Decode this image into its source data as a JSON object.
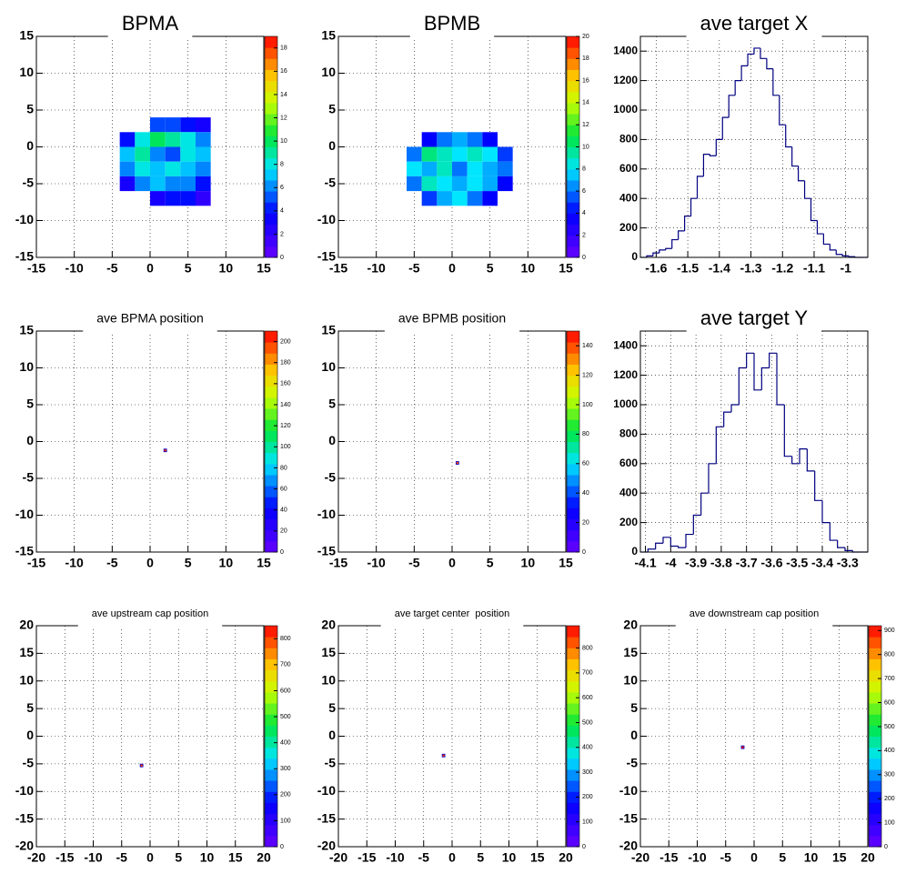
{
  "chart_data": [
    {
      "type": "heatmap",
      "title": "BPMA",
      "xlim": [
        -15,
        15
      ],
      "ylim": [
        -15,
        15
      ],
      "xticks": [
        -15,
        -10,
        -5,
        0,
        5,
        10,
        15
      ],
      "yticks": [
        -15,
        -10,
        -5,
        0,
        5,
        10,
        15
      ],
      "zlim": [
        0,
        19
      ],
      "zticks": [
        0,
        2,
        4,
        6,
        8,
        10,
        12,
        14,
        16,
        18
      ],
      "grid": true,
      "x": [
        1,
        3,
        5,
        7,
        -3,
        -1,
        1,
        3,
        5,
        7,
        -3,
        -1,
        1,
        3,
        5,
        7,
        -3,
        -1,
        1,
        3,
        5,
        7,
        -3,
        -1,
        1,
        3,
        5,
        7,
        1,
        3,
        5,
        7
      ],
      "y": [
        3,
        3,
        3,
        3,
        1,
        1,
        1,
        1,
        1,
        1,
        -1,
        -1,
        -1,
        -1,
        -1,
        -1,
        -3,
        -3,
        -3,
        -3,
        -3,
        -3,
        -5,
        -5,
        -5,
        -5,
        -5,
        -5,
        -7,
        -7,
        -7,
        -7
      ],
      "z": [
        5,
        5,
        4,
        3,
        4,
        8,
        10,
        9,
        8,
        6,
        7,
        9,
        6,
        5,
        8,
        7,
        6,
        8,
        7,
        8,
        7,
        6,
        3,
        6,
        7,
        6,
        6,
        4,
        3,
        4,
        4,
        2
      ]
    },
    {
      "type": "heatmap",
      "title": "BPMB",
      "xlim": [
        -15,
        15
      ],
      "ylim": [
        -15,
        15
      ],
      "xticks": [
        -15,
        -10,
        -5,
        0,
        5,
        10,
        15
      ],
      "yticks": [
        -15,
        -10,
        -5,
        0,
        5,
        10,
        15
      ],
      "zlim": [
        0,
        20
      ],
      "zticks": [
        0,
        2,
        4,
        6,
        8,
        10,
        12,
        14,
        16,
        18,
        20
      ],
      "grid": true,
      "x": [
        -3,
        -1,
        1,
        3,
        5,
        -5,
        -3,
        -1,
        1,
        3,
        5,
        7,
        -5,
        -3,
        -1,
        1,
        3,
        5,
        7,
        -5,
        -3,
        -1,
        1,
        3,
        5,
        7,
        -3,
        -1,
        1,
        3,
        5
      ],
      "y": [
        1,
        1,
        1,
        1,
        1,
        -1,
        -1,
        -1,
        -1,
        -1,
        -1,
        -1,
        -3,
        -3,
        -3,
        -3,
        -3,
        -3,
        -3,
        -5,
        -5,
        -5,
        -5,
        -5,
        -5,
        -5,
        -7,
        -7,
        -7,
        -7,
        -7
      ],
      "z": [
        4,
        6,
        7,
        6,
        4,
        6,
        10,
        9,
        8,
        9,
        8,
        5,
        8,
        7,
        9,
        6,
        8,
        7,
        6,
        6,
        9,
        8,
        7,
        8,
        7,
        4,
        5,
        7,
        8,
        6,
        4
      ]
    },
    {
      "type": "histogram",
      "title": "ave target X",
      "color": "#000080",
      "xlim": [
        -1.65,
        -0.93
      ],
      "ylim": [
        0,
        1500
      ],
      "xticks": [
        -1.6,
        -1.5,
        -1.4,
        -1.3,
        -1.2,
        -1.1,
        -1
      ],
      "yticks": [
        0,
        200,
        400,
        600,
        800,
        1000,
        1200,
        1400
      ],
      "grid": true,
      "bins": [
        -1.65,
        -1.63,
        -1.61,
        -1.59,
        -1.57,
        -1.55,
        -1.53,
        -1.51,
        -1.49,
        -1.47,
        -1.45,
        -1.43,
        -1.41,
        -1.39,
        -1.37,
        -1.35,
        -1.33,
        -1.31,
        -1.29,
        -1.27,
        -1.25,
        -1.23,
        -1.21,
        -1.19,
        -1.17,
        -1.15,
        -1.13,
        -1.11,
        -1.09,
        -1.07,
        -1.05,
        -1.03,
        -1.01,
        -0.99,
        -0.97,
        -0.95,
        -0.93
      ],
      "counts": [
        0,
        10,
        30,
        50,
        60,
        120,
        180,
        280,
        400,
        550,
        700,
        690,
        800,
        950,
        1100,
        1200,
        1300,
        1380,
        1420,
        1350,
        1280,
        1100,
        900,
        750,
        620,
        520,
        400,
        250,
        160,
        90,
        50,
        20,
        10,
        5,
        0,
        0
      ]
    },
    {
      "type": "heatmap",
      "title": "ave BPMA position",
      "xlim": [
        -15,
        15
      ],
      "ylim": [
        -15,
        15
      ],
      "xticks": [
        -15,
        -10,
        -5,
        0,
        5,
        10,
        15
      ],
      "yticks": [
        -15,
        -10,
        -5,
        0,
        5,
        10,
        15
      ],
      "zlim": [
        0,
        210
      ],
      "zticks": [
        0,
        20,
        40,
        60,
        80,
        100,
        120,
        140,
        160,
        180,
        200
      ],
      "grid": true,
      "x": [
        2
      ],
      "y": [
        -1.2
      ],
      "z": [
        200
      ]
    },
    {
      "type": "heatmap",
      "title": "ave BPMB position",
      "xlim": [
        -15,
        15
      ],
      "ylim": [
        -15,
        15
      ],
      "xticks": [
        -15,
        -10,
        -5,
        0,
        5,
        10,
        15
      ],
      "yticks": [
        -15,
        -10,
        -5,
        0,
        5,
        10,
        15
      ],
      "zlim": [
        0,
        150
      ],
      "zticks": [
        0,
        20,
        40,
        60,
        80,
        100,
        120,
        140
      ],
      "grid": true,
      "x": [
        0.7
      ],
      "y": [
        -2.9
      ],
      "z": [
        140
      ]
    },
    {
      "type": "histogram",
      "title": "ave target Y",
      "color": "#000080",
      "xlim": [
        -4.12,
        -3.22
      ],
      "ylim": [
        0,
        1500
      ],
      "xticks": [
        -4.1,
        -4,
        -3.9,
        -3.8,
        -3.7,
        -3.6,
        -3.5,
        -3.4,
        -3.3
      ],
      "yticks": [
        0,
        200,
        400,
        600,
        800,
        1000,
        1200,
        1400
      ],
      "grid": true,
      "bins": [
        -4.12,
        -4.09,
        -4.06,
        -4.03,
        -4.0,
        -3.97,
        -3.94,
        -3.91,
        -3.88,
        -3.85,
        -3.82,
        -3.79,
        -3.76,
        -3.73,
        -3.7,
        -3.67,
        -3.64,
        -3.61,
        -3.58,
        -3.55,
        -3.52,
        -3.49,
        -3.46,
        -3.43,
        -3.4,
        -3.37,
        -3.34,
        -3.31,
        -3.28,
        -3.25,
        -3.22
      ],
      "counts": [
        0,
        20,
        60,
        100,
        40,
        30,
        120,
        250,
        400,
        600,
        850,
        950,
        1000,
        1250,
        1350,
        1100,
        1250,
        1350,
        1000,
        650,
        600,
        700,
        550,
        350,
        200,
        80,
        30,
        10,
        0,
        0
      ]
    },
    {
      "type": "heatmap",
      "title": "ave upstream cap position",
      "xlim": [
        -20,
        20
      ],
      "ylim": [
        -20,
        20
      ],
      "xticks": [
        -20,
        -15,
        -10,
        -5,
        0,
        5,
        10,
        15,
        20
      ],
      "yticks": [
        -20,
        -15,
        -10,
        -5,
        0,
        5,
        10,
        15,
        20
      ],
      "zlim": [
        0,
        850
      ],
      "zticks": [
        0,
        100,
        200,
        300,
        400,
        500,
        600,
        700,
        800
      ],
      "grid": true,
      "x": [
        -1.5
      ],
      "y": [
        -5.3
      ],
      "z": [
        800
      ]
    },
    {
      "type": "heatmap",
      "title": "ave target center  position",
      "xlim": [
        -20,
        20
      ],
      "ylim": [
        -20,
        20
      ],
      "xticks": [
        -20,
        -15,
        -10,
        -5,
        0,
        5,
        10,
        15,
        20
      ],
      "yticks": [
        -20,
        -15,
        -10,
        -5,
        0,
        5,
        10,
        15,
        20
      ],
      "zlim": [
        0,
        890
      ],
      "zticks": [
        0,
        100,
        200,
        300,
        400,
        500,
        600,
        700,
        800
      ],
      "grid": true,
      "x": [
        -1.5
      ],
      "y": [
        -3.5
      ],
      "z": [
        850
      ]
    },
    {
      "type": "heatmap",
      "title": "ave downstream cap position",
      "xlim": [
        -20,
        20
      ],
      "ylim": [
        -20,
        20
      ],
      "xticks": [
        -20,
        -15,
        -10,
        -5,
        0,
        5,
        10,
        15,
        20
      ],
      "yticks": [
        -20,
        -15,
        -10,
        -5,
        0,
        5,
        10,
        15,
        20
      ],
      "zlim": [
        0,
        920
      ],
      "zticks": [
        0,
        100,
        200,
        300,
        400,
        500,
        600,
        700,
        800,
        900
      ],
      "grid": true,
      "x": [
        -2
      ],
      "y": [
        -2
      ],
      "z": [
        900
      ]
    }
  ]
}
